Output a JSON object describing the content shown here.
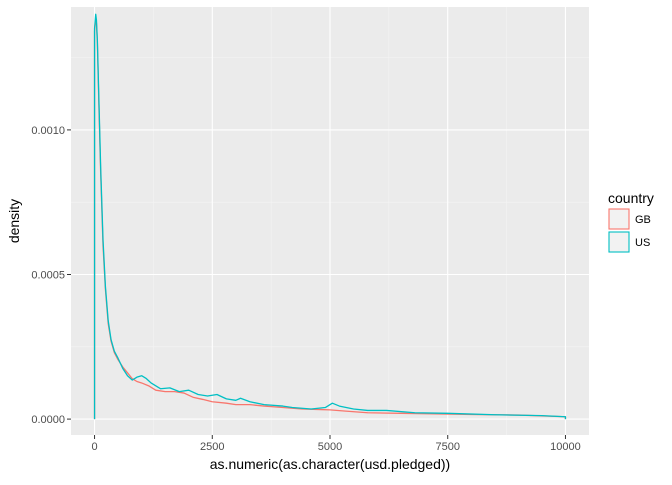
{
  "chart_data": {
    "type": "density",
    "xlabel": "as.numeric(as.character(usd.pledged))",
    "ylabel": "density",
    "xlim": [
      -500,
      10500
    ],
    "ylim": [
      -5.5e-05,
      0.001425
    ],
    "x_ticks": [
      0,
      2500,
      5000,
      7500,
      10000
    ],
    "x_tick_labels": [
      "0",
      "2500",
      "5000",
      "7500",
      "10000"
    ],
    "y_ticks": [
      0,
      0.0005,
      0.001
    ],
    "y_tick_labels": [
      "0.0000",
      "0.0005",
      "0.0010"
    ],
    "grid": true,
    "panel_background": "#ebebeb",
    "legend": {
      "title": "country",
      "position": "right"
    },
    "series": [
      {
        "name": "GB",
        "color": "#f8766d",
        "points": [
          [
            0,
            0
          ],
          [
            0,
            0.00134
          ],
          [
            10,
            0.00136
          ],
          [
            25,
            0.00138
          ],
          [
            40,
            0.00137
          ],
          [
            60,
            0.0013
          ],
          [
            90,
            0.0011
          ],
          [
            130,
            0.00085
          ],
          [
            180,
            0.0006
          ],
          [
            230,
            0.00045
          ],
          [
            290,
            0.00033
          ],
          [
            350,
            0.00027
          ],
          [
            420,
            0.00023
          ],
          [
            500,
            0.000205
          ],
          [
            600,
            0.00018
          ],
          [
            700,
            0.00016
          ],
          [
            800,
            0.00014
          ],
          [
            900,
            0.00013
          ],
          [
            1000,
            0.000125
          ],
          [
            1150,
            0.000115
          ],
          [
            1300,
            0.0001
          ],
          [
            1500,
            9.5e-05
          ],
          [
            1700,
            9.5e-05
          ],
          [
            1900,
            9e-05
          ],
          [
            2100,
            7.5e-05
          ],
          [
            2300,
            6.8e-05
          ],
          [
            2500,
            6e-05
          ],
          [
            2800,
            5.5e-05
          ],
          [
            3000,
            5e-05
          ],
          [
            3300,
            5e-05
          ],
          [
            3600,
            4.5e-05
          ],
          [
            4000,
            4e-05
          ],
          [
            4400,
            3.5e-05
          ],
          [
            4800,
            3.3e-05
          ],
          [
            5000,
            3.2e-05
          ],
          [
            5300,
            2.8e-05
          ],
          [
            5800,
            2.2e-05
          ],
          [
            6500,
            2e-05
          ],
          [
            7200,
            1.8e-05
          ],
          [
            8000,
            1.6e-05
          ],
          [
            9000,
            1.4e-05
          ],
          [
            10000,
            8e-06
          ],
          [
            10000,
            0
          ]
        ]
      },
      {
        "name": "US",
        "color": "#00bfc4",
        "points": [
          [
            0,
            0
          ],
          [
            0,
            0.00135
          ],
          [
            10,
            0.00137
          ],
          [
            25,
            0.0014
          ],
          [
            40,
            0.00138
          ],
          [
            60,
            0.00131
          ],
          [
            90,
            0.00112
          ],
          [
            130,
            0.00087
          ],
          [
            180,
            0.00062
          ],
          [
            230,
            0.00046
          ],
          [
            290,
            0.00034
          ],
          [
            350,
            0.000275
          ],
          [
            420,
            0.000235
          ],
          [
            500,
            0.00021
          ],
          [
            600,
            0.000175
          ],
          [
            700,
            0.00015
          ],
          [
            800,
            0.000135
          ],
          [
            900,
            0.000145
          ],
          [
            1000,
            0.00015
          ],
          [
            1100,
            0.00014
          ],
          [
            1200,
            0.000125
          ],
          [
            1400,
            0.000105
          ],
          [
            1600,
            0.000108
          ],
          [
            1800,
            9.5e-05
          ],
          [
            2000,
            0.0001
          ],
          [
            2200,
            8.5e-05
          ],
          [
            2400,
            8e-05
          ],
          [
            2600,
            8.5e-05
          ],
          [
            2800,
            7e-05
          ],
          [
            3000,
            6.5e-05
          ],
          [
            3100,
            7.2e-05
          ],
          [
            3300,
            6e-05
          ],
          [
            3600,
            5e-05
          ],
          [
            4000,
            4.5e-05
          ],
          [
            4200,
            4e-05
          ],
          [
            4600,
            3.5e-05
          ],
          [
            4900,
            4e-05
          ],
          [
            5050,
            5.5e-05
          ],
          [
            5200,
            4.5e-05
          ],
          [
            5500,
            3.5e-05
          ],
          [
            5800,
            3e-05
          ],
          [
            6200,
            3e-05
          ],
          [
            6800,
            2.2e-05
          ],
          [
            7500,
            2e-05
          ],
          [
            8500,
            1.5e-05
          ],
          [
            9500,
            1.2e-05
          ],
          [
            10000,
            8e-06
          ],
          [
            10000,
            0
          ]
        ]
      }
    ]
  }
}
